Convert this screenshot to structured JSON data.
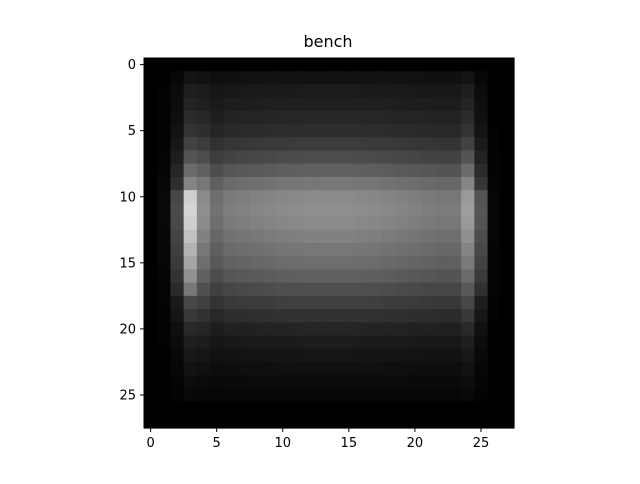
{
  "chart_data": {
    "type": "heatmap",
    "title": "bench",
    "xlabel": "",
    "ylabel": "",
    "colormap": "gray",
    "shape": [
      28,
      28
    ],
    "xlim": [
      -0.5,
      27.5
    ],
    "ylim": [
      27.5,
      -0.5
    ],
    "x_ticks": [
      0,
      5,
      10,
      15,
      20,
      25
    ],
    "y_ticks": [
      0,
      5,
      10,
      15,
      20,
      25
    ],
    "value_range": [
      0,
      1
    ],
    "row_profile": [
      0.0,
      0.08,
      0.12,
      0.14,
      0.17,
      0.2,
      0.26,
      0.33,
      0.42,
      0.52,
      0.6,
      0.62,
      0.6,
      0.56,
      0.52,
      0.48,
      0.42,
      0.35,
      0.28,
      0.22,
      0.16,
      0.12,
      0.09,
      0.07,
      0.05,
      0.03,
      0.0,
      0.0
    ],
    "column_profile": [
      0.0,
      0.05,
      0.35,
      1.0,
      0.9,
      0.72,
      0.8,
      0.82,
      0.84,
      0.86,
      0.88,
      0.89,
      0.9,
      0.9,
      0.9,
      0.9,
      0.89,
      0.88,
      0.86,
      0.84,
      0.82,
      0.8,
      0.78,
      0.78,
      1.0,
      0.4,
      0.03,
      0.0
    ],
    "bright_spot_columns": [
      2,
      25
    ],
    "bright_spot_rows": [
      10,
      17
    ],
    "bright_spot_boost": 0.35
  }
}
